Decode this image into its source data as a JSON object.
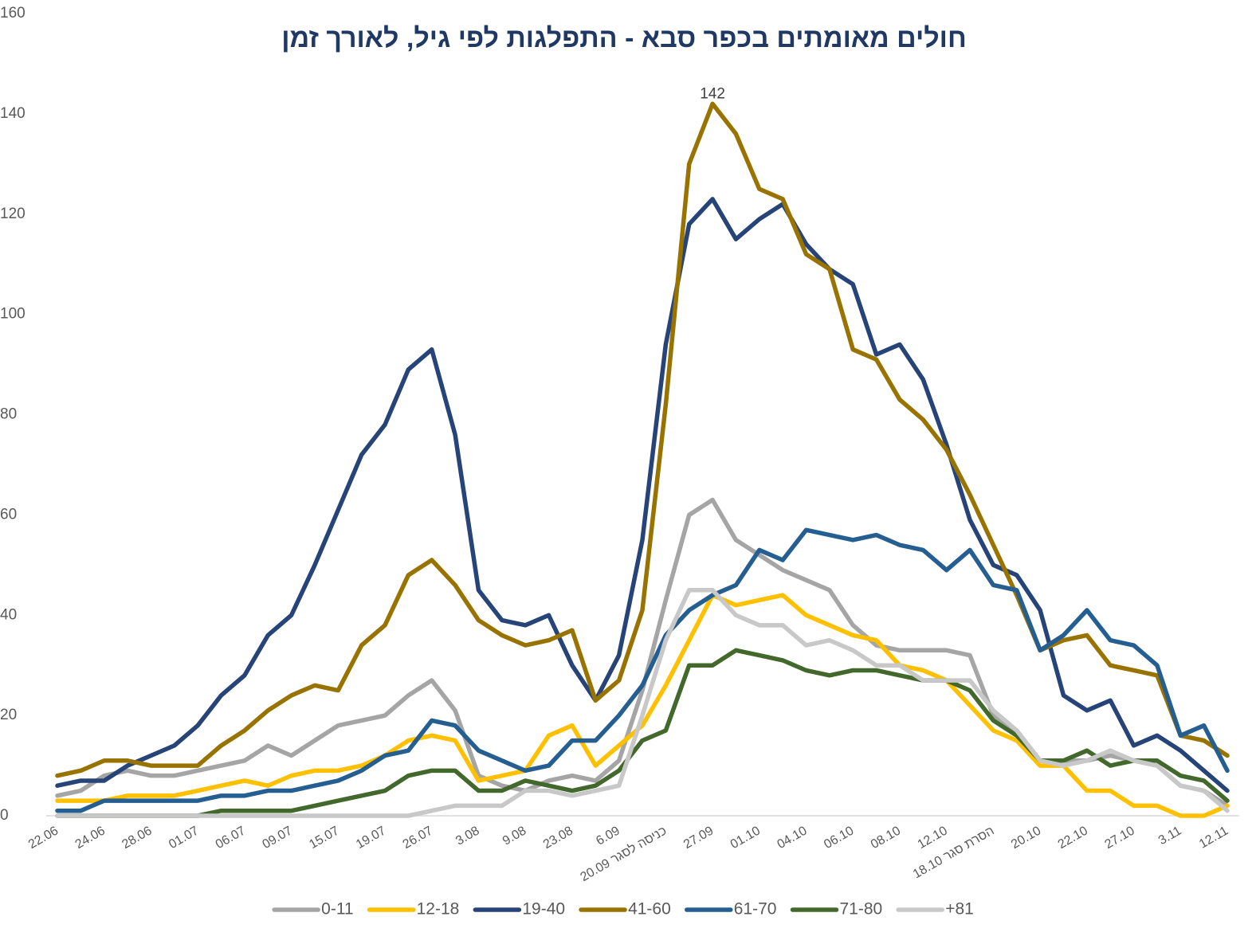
{
  "chart_data": {
    "type": "line",
    "title": "חולים מאומתים בכפר סבא - התפלגות לפי גיל, לאורך זמן",
    "categories": [
      "22.06",
      null,
      "24.06",
      null,
      "28.06",
      null,
      "01.07",
      null,
      "06.07",
      null,
      "09.07",
      null,
      "15.07",
      null,
      "19.07",
      null,
      "26.07",
      null,
      "3.08",
      null,
      "9.08",
      null,
      "23.08",
      null,
      "6.09",
      null,
      "כניסה לסגר 20.09",
      null,
      "27.09",
      null,
      "01.10",
      null,
      "04.10",
      null,
      "06.10",
      null,
      "08.10",
      null,
      "12.10",
      null,
      "הסרת סגר 18.10",
      null,
      "20.10",
      null,
      "22.10",
      null,
      "27.10",
      null,
      "3.11",
      null,
      "12.11"
    ],
    "ylim": [
      0,
      160
    ],
    "yticks": [
      0,
      20,
      40,
      60,
      80,
      100,
      120,
      140,
      160
    ],
    "grid": false,
    "legend": "bottom",
    "labeled_point": {
      "series": 3,
      "index": 28
    },
    "series": [
      {
        "name": "0-11",
        "color": "#a5a5a5",
        "values": [
          4,
          5,
          8,
          9,
          8,
          8,
          9,
          10,
          11,
          14,
          12,
          15,
          18,
          19,
          20,
          24,
          27,
          21,
          8,
          6,
          5,
          7,
          8,
          7,
          11,
          25,
          43,
          60,
          63,
          55,
          52,
          49,
          47,
          45,
          38,
          34,
          33,
          33,
          33,
          32,
          20,
          17,
          11,
          11,
          11,
          12,
          11,
          10,
          6,
          5,
          2
        ]
      },
      {
        "name": "12-18",
        "color": "#ffc000",
        "values": [
          3,
          3,
          3,
          4,
          4,
          4,
          5,
          6,
          7,
          6,
          8,
          9,
          9,
          10,
          12,
          15,
          16,
          15,
          7,
          8,
          9,
          16,
          18,
          10,
          14,
          18,
          26,
          35,
          44,
          42,
          43,
          44,
          40,
          38,
          36,
          35,
          30,
          29,
          27,
          22,
          17,
          15,
          10,
          10,
          5,
          5,
          2,
          2,
          0,
          0,
          2
        ]
      },
      {
        "name": "19-40",
        "color": "#264478",
        "values": [
          6,
          7,
          7,
          10,
          12,
          14,
          18,
          24,
          28,
          36,
          40,
          50,
          61,
          72,
          78,
          89,
          93,
          76,
          45,
          39,
          38,
          40,
          30,
          23,
          32,
          55,
          94,
          118,
          123,
          115,
          119,
          122,
          114,
          109,
          106,
          92,
          94,
          87,
          74,
          59,
          50,
          48,
          41,
          24,
          21,
          23,
          14,
          16,
          13,
          9,
          5
        ]
      },
      {
        "name": "41-60",
        "color": "#997300",
        "values": [
          8,
          9,
          11,
          11,
          10,
          10,
          10,
          14,
          17,
          21,
          24,
          26,
          25,
          34,
          38,
          48,
          51,
          46,
          39,
          36,
          34,
          35,
          37,
          23,
          27,
          41,
          82,
          130,
          142,
          136,
          125,
          123,
          112,
          109,
          93,
          91,
          83,
          79,
          73,
          64,
          54,
          44,
          33,
          35,
          36,
          30,
          29,
          28,
          16,
          15,
          12
        ]
      },
      {
        "name": "61-70",
        "color": "#255e91",
        "values": [
          1,
          1,
          3,
          3,
          3,
          3,
          3,
          4,
          4,
          5,
          5,
          6,
          7,
          9,
          12,
          13,
          19,
          18,
          13,
          11,
          9,
          10,
          15,
          15,
          20,
          26,
          36,
          41,
          44,
          46,
          53,
          51,
          57,
          56,
          55,
          56,
          54,
          53,
          49,
          53,
          46,
          45,
          33,
          36,
          41,
          35,
          34,
          30,
          16,
          18,
          9
        ]
      },
      {
        "name": "71-80",
        "color": "#43682b",
        "values": [
          0,
          0,
          0,
          0,
          0,
          0,
          0,
          1,
          1,
          1,
          1,
          2,
          3,
          4,
          5,
          8,
          9,
          9,
          5,
          5,
          7,
          6,
          5,
          6,
          9,
          15,
          17,
          30,
          30,
          33,
          32,
          31,
          29,
          28,
          29,
          29,
          28,
          27,
          27,
          25,
          19,
          16,
          11,
          11,
          13,
          10,
          11,
          11,
          8,
          7,
          3
        ]
      },
      {
        "name": "+81",
        "color": "#c8c8c8",
        "values": [
          0,
          0,
          0,
          0,
          0,
          0,
          0,
          0,
          0,
          0,
          0,
          0,
          0,
          0,
          0,
          0,
          1,
          2,
          2,
          2,
          5,
          5,
          4,
          5,
          6,
          20,
          35,
          45,
          45,
          40,
          38,
          38,
          34,
          35,
          33,
          30,
          30,
          27,
          27,
          27,
          21,
          17,
          11,
          10,
          11,
          13,
          11,
          10,
          6,
          5,
          1
        ]
      }
    ]
  }
}
